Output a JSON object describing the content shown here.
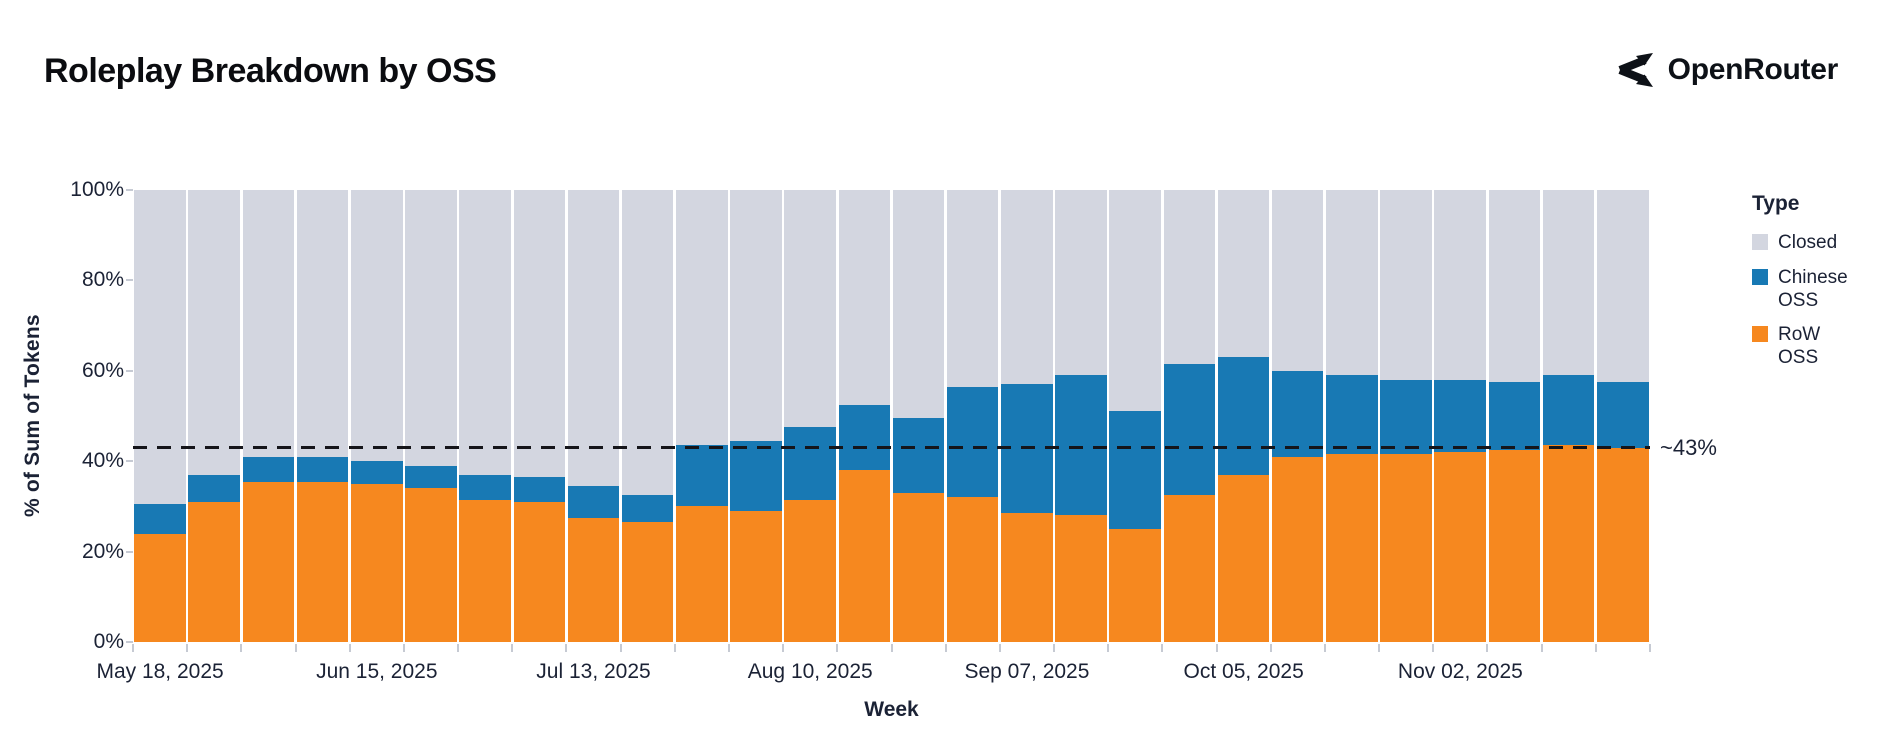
{
  "header": {
    "title": "Roleplay Breakdown by OSS",
    "brand": "OpenRouter"
  },
  "chart_data": {
    "type": "bar",
    "stacked": true,
    "normalized": "percent",
    "title": "Roleplay Breakdown by OSS",
    "xlabel": "Week",
    "ylabel": "% of Sum of Tokens",
    "ylim": [
      0,
      100
    ],
    "y_ticks": [
      "0%",
      "20%",
      "40%",
      "60%",
      "80%",
      "100%"
    ],
    "x_tick_every": 4,
    "x_tick_labels": [
      "May 18, 2025",
      "Jun 15, 2025",
      "Jul 13, 2025",
      "Aug 10, 2025",
      "Sep 07, 2025",
      "Oct 05, 2025",
      "Nov 02, 2025"
    ],
    "categories": [
      "May 18, 2025",
      "May 25, 2025",
      "Jun 01, 2025",
      "Jun 08, 2025",
      "Jun 15, 2025",
      "Jun 22, 2025",
      "Jun 29, 2025",
      "Jul 06, 2025",
      "Jul 13, 2025",
      "Jul 20, 2025",
      "Jul 27, 2025",
      "Aug 03, 2025",
      "Aug 10, 2025",
      "Aug 17, 2025",
      "Aug 24, 2025",
      "Aug 31, 2025",
      "Sep 07, 2025",
      "Sep 14, 2025",
      "Sep 21, 2025",
      "Sep 28, 2025",
      "Oct 05, 2025",
      "Oct 12, 2025",
      "Oct 19, 2025",
      "Oct 26, 2025",
      "Nov 02, 2025",
      "Nov 09, 2025",
      "Nov 16, 2025",
      "Nov 23, 2025"
    ],
    "series": [
      {
        "name": "RoW OSS",
        "color": "#F6881F",
        "values": [
          24,
          31,
          35.5,
          35.5,
          35,
          34,
          31.5,
          31,
          27.5,
          26.5,
          30,
          29,
          31.5,
          38,
          33,
          32,
          28.5,
          28,
          25,
          32.5,
          37,
          41,
          41.5,
          41.5,
          42,
          42.5,
          43.5,
          43
        ]
      },
      {
        "name": "Chinese OSS",
        "color": "#1879B4",
        "values": [
          6.5,
          6,
          5.5,
          5.5,
          5,
          5,
          5.5,
          5.5,
          7,
          6,
          13.5,
          15.5,
          16,
          14.5,
          16.5,
          24.5,
          28.5,
          31,
          26,
          29,
          26,
          19,
          17.5,
          16.5,
          16,
          15,
          15.5,
          14.5
        ]
      },
      {
        "name": "Closed",
        "color": "#D3D6E0",
        "values": [
          69.5,
          63,
          59,
          59,
          60,
          61,
          63,
          63.5,
          65.5,
          67.5,
          56.5,
          55.5,
          52.5,
          47.5,
          50.5,
          43.5,
          43,
          41,
          49,
          38.5,
          37,
          40,
          41,
          42,
          42,
          42.5,
          41,
          42.5
        ]
      }
    ],
    "annotation": {
      "value": 43,
      "label": "~43%",
      "line_style": "dashed",
      "color": "#15151a"
    },
    "legend": {
      "title": "Type",
      "position": "right-top",
      "entries": [
        "Closed",
        "Chinese OSS",
        "RoW OSS"
      ]
    },
    "grid": false
  }
}
